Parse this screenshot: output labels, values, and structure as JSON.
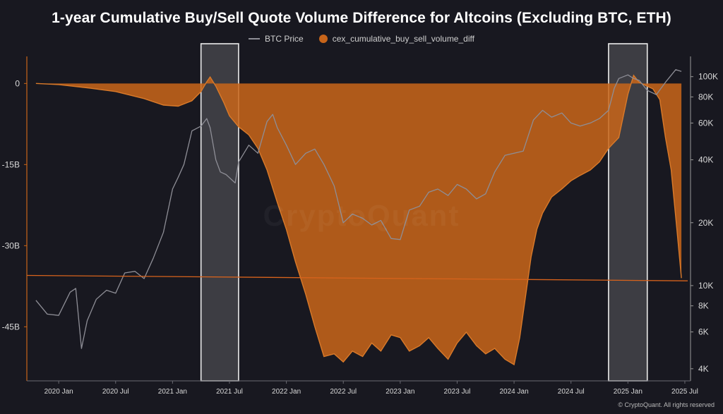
{
  "chart_data": {
    "type": "area",
    "title": "1-year Cumulative Buy/Sell Quote Volume Difference for Altcoins (Excluding BTC, ETH)",
    "x_tick_labels": [
      "2020 Jan",
      "2020 Jul",
      "2021 Jan",
      "2021 Jul",
      "2022 Jan",
      "2022 Jul",
      "2023 Jan",
      "2023 Jul",
      "2024 Jan",
      "2024 Jul",
      "2025 Jan",
      "2025 Jul"
    ],
    "y_left_ticks": [
      0,
      -15,
      -30,
      -45
    ],
    "y_left_tick_labels": [
      "0",
      "-15B",
      "-30B",
      "-45B"
    ],
    "y_left_unit": "B",
    "y_left_range": [
      -55,
      5
    ],
    "y_right_ticks": [
      4000,
      6000,
      8000,
      10000,
      20000,
      40000,
      60000,
      80000,
      100000
    ],
    "y_right_tick_labels": [
      "4K",
      "6K",
      "8K",
      "10K",
      "20K",
      "40K",
      "60K",
      "80K",
      "100K"
    ],
    "y_right_range": [
      3500,
      125000
    ],
    "x_range": [
      2019.72,
      2025.55
    ],
    "series": [
      {
        "name": "BTC Price",
        "axis": "right",
        "color": "#8e8e96",
        "x": [
          2019.8,
          2019.9,
          2020.0,
          2020.1,
          2020.15,
          2020.2,
          2020.25,
          2020.33,
          2020.42,
          2020.5,
          2020.58,
          2020.67,
          2020.75,
          2020.83,
          2020.92,
          2021.0,
          2021.05,
          2021.1,
          2021.17,
          2021.25,
          2021.3,
          2021.33,
          2021.38,
          2021.42,
          2021.47,
          2021.55,
          2021.58,
          2021.67,
          2021.75,
          2021.83,
          2021.88,
          2021.92,
          2022.0,
          2022.08,
          2022.17,
          2022.25,
          2022.33,
          2022.42,
          2022.5,
          2022.58,
          2022.67,
          2022.75,
          2022.83,
          2022.92,
          2023.0,
          2023.08,
          2023.17,
          2023.25,
          2023.33,
          2023.42,
          2023.5,
          2023.58,
          2023.67,
          2023.75,
          2023.83,
          2023.92,
          2024.0,
          2024.08,
          2024.17,
          2024.25,
          2024.33,
          2024.42,
          2024.5,
          2024.58,
          2024.67,
          2024.75,
          2024.83,
          2024.88,
          2024.92,
          2025.0,
          2025.05,
          2025.1,
          2025.17,
          2025.25,
          2025.33,
          2025.42,
          2025.47
        ],
        "values": [
          8500,
          7300,
          7200,
          9300,
          9700,
          5000,
          6800,
          8600,
          9500,
          9200,
          11500,
          11700,
          10800,
          13500,
          18000,
          29000,
          33000,
          38000,
          55000,
          58000,
          63000,
          57000,
          40000,
          35000,
          34000,
          31000,
          39000,
          47000,
          43000,
          61000,
          66000,
          57000,
          47000,
          38000,
          43000,
          45000,
          38000,
          30000,
          20000,
          22000,
          21000,
          19500,
          20500,
          16800,
          16600,
          23000,
          24000,
          28000,
          29000,
          27000,
          30500,
          29000,
          26000,
          27500,
          35000,
          42000,
          43000,
          44000,
          62000,
          69000,
          64000,
          67000,
          60000,
          58000,
          60000,
          63000,
          69000,
          88000,
          98000,
          102000,
          98000,
          96000,
          86000,
          82000,
          94000,
          108000,
          106000
        ]
      },
      {
        "name": "cex_cumulative_buy_sell_volume_diff",
        "axis": "left",
        "unit": "B",
        "color": "#c8651a",
        "x": [
          2019.8,
          2020.0,
          2020.25,
          2020.5,
          2020.75,
          2020.92,
          2021.05,
          2021.17,
          2021.25,
          2021.3,
          2021.33,
          2021.38,
          2021.45,
          2021.5,
          2021.58,
          2021.67,
          2021.75,
          2021.83,
          2021.92,
          2022.0,
          2022.08,
          2022.17,
          2022.25,
          2022.33,
          2022.42,
          2022.5,
          2022.58,
          2022.67,
          2022.75,
          2022.83,
          2022.92,
          2023.0,
          2023.08,
          2023.17,
          2023.25,
          2023.33,
          2023.42,
          2023.5,
          2023.58,
          2023.67,
          2023.75,
          2023.83,
          2023.92,
          2024.0,
          2024.05,
          2024.1,
          2024.15,
          2024.2,
          2024.25,
          2024.33,
          2024.42,
          2024.5,
          2024.58,
          2024.67,
          2024.75,
          2024.83,
          2024.92,
          2025.0,
          2025.05,
          2025.1,
          2025.17,
          2025.22,
          2025.28,
          2025.33,
          2025.38,
          2025.43,
          2025.47
        ],
        "values": [
          0,
          -0.2,
          -0.8,
          -1.5,
          -2.8,
          -4.0,
          -4.2,
          -3.2,
          -1.5,
          0.3,
          1.2,
          -0.5,
          -3.5,
          -6.0,
          -8.0,
          -9.5,
          -12.0,
          -16.0,
          -22.0,
          -27.0,
          -33.0,
          -39.0,
          -45.0,
          -50.5,
          -50.0,
          -51.5,
          -49.5,
          -50.5,
          -48.0,
          -49.5,
          -46.5,
          -47.0,
          -49.5,
          -48.5,
          -47.0,
          -49.0,
          -51.0,
          -48.0,
          -46.0,
          -48.5,
          -50.0,
          -49.0,
          -51.0,
          -52.0,
          -47.0,
          -39.5,
          -32.0,
          -27.0,
          -24.0,
          -21.0,
          -19.5,
          -18.0,
          -17.0,
          -16.0,
          -14.5,
          -12.0,
          -10.0,
          -2.0,
          1.5,
          0.2,
          -0.5,
          -1.0,
          -3.0,
          -10.0,
          -16.0,
          -27.0,
          -36.0
        ]
      }
    ],
    "horizontal_reference_line": {
      "color": "#d8631c",
      "from_value": -35.5,
      "to_value": -36.5
    },
    "highlight_ranges": [
      [
        2021.25,
        2021.58
      ],
      [
        2024.83,
        2025.17
      ]
    ],
    "legend": [
      "BTC Price",
      "cex_cumulative_buy_sell_volume_diff"
    ],
    "legend_placement": "top-center",
    "grid": false
  },
  "watermark": "CryptoQuant",
  "credit": "© CryptoQuant. All rights reserved"
}
